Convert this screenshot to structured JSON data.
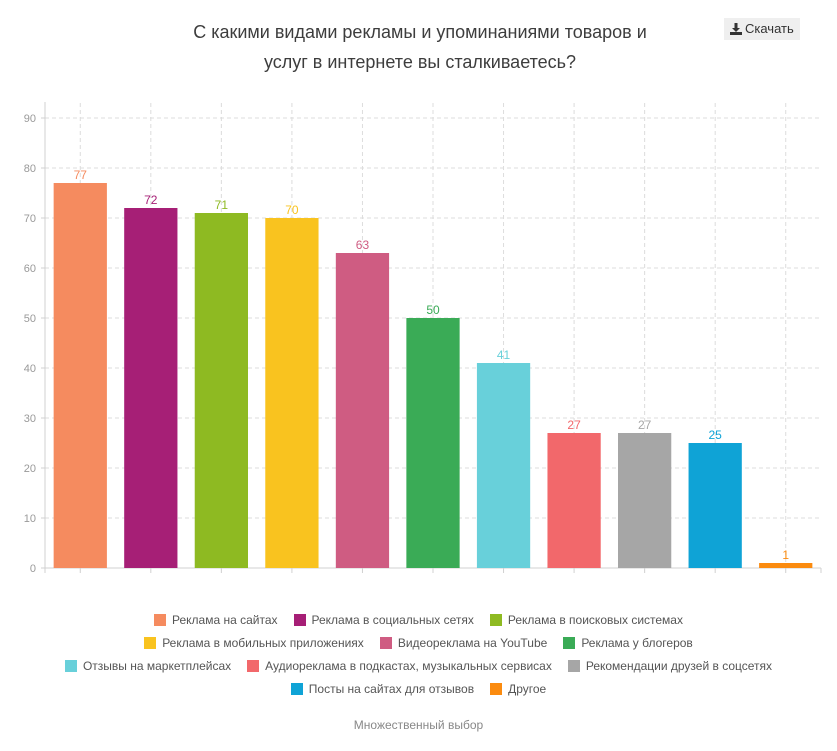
{
  "header": {
    "title_line1": "С какими видами рекламы и упоминаниями товаров и",
    "title_line2": "услуг в интернете вы сталкиваетесь?",
    "download_label": "Скачать",
    "download_icon": "download-icon"
  },
  "chart_data": {
    "type": "bar",
    "title": "С какими видами рекламы и упоминаниями товаров и услуг в интернете вы сталкиваетесь?",
    "xlabel": "",
    "ylabel": "",
    "ylim": [
      0,
      90
    ],
    "yticks": [
      0,
      10,
      20,
      30,
      40,
      50,
      60,
      70,
      80,
      90
    ],
    "grid": true,
    "legend_position": "bottom",
    "categories": [
      "Реклама на сайтах",
      "Реклама в социальных сетях",
      "Реклама в поисковых системах",
      "Реклама в мобильных приложениях",
      "Видеореклама на YouTube",
      "Реклама у блогеров",
      "Отзывы на маркетплейсах",
      "Аудиореклама в подкастах, музыкальных сервисах",
      "Рекомендации друзей в соцсетях",
      "Посты на сайтах для отзывов",
      "Другое"
    ],
    "values": [
      77,
      72,
      71,
      70,
      63,
      50,
      41,
      27,
      27,
      25,
      1
    ],
    "colors": [
      "#f58b5f",
      "#a61f76",
      "#8eba22",
      "#f9c31f",
      "#cf5c82",
      "#3aab56",
      "#68d0da",
      "#f2686b",
      "#a6a6a6",
      "#0fa3d6",
      "#fb8b0f"
    ]
  },
  "legend_rows": [
    [
      0,
      1,
      2
    ],
    [
      3,
      4,
      5
    ],
    [
      6,
      7,
      8
    ],
    [
      9,
      10
    ]
  ],
  "footer": {
    "note": "Множественный выбор"
  }
}
